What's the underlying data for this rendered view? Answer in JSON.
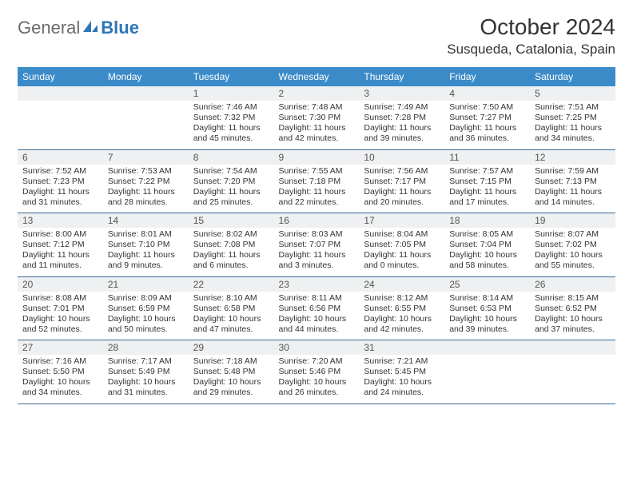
{
  "brand": {
    "general": "General",
    "blue": "Blue"
  },
  "title": "October 2024",
  "location": "Susqueda, Catalonia, Spain",
  "colors": {
    "header_bg": "#3b8bc9",
    "header_text": "#ffffff",
    "daynum_bg": "#eef0f1",
    "row_border": "#3b6a92",
    "logo_gray": "#6b6b6b",
    "logo_blue": "#2d76b8"
  },
  "fonts": {
    "title_pt": 28,
    "location_pt": 17,
    "weekday_pt": 12,
    "daynum_pt": 12,
    "body_pt": 10.5
  },
  "weekdays": [
    "Sunday",
    "Monday",
    "Tuesday",
    "Wednesday",
    "Thursday",
    "Friday",
    "Saturday"
  ],
  "weeks": [
    [
      {
        "day": "",
        "sunrise": "",
        "sunset": "",
        "daylight": ""
      },
      {
        "day": "",
        "sunrise": "",
        "sunset": "",
        "daylight": ""
      },
      {
        "day": "1",
        "sunrise": "Sunrise: 7:46 AM",
        "sunset": "Sunset: 7:32 PM",
        "daylight": "Daylight: 11 hours and 45 minutes."
      },
      {
        "day": "2",
        "sunrise": "Sunrise: 7:48 AM",
        "sunset": "Sunset: 7:30 PM",
        "daylight": "Daylight: 11 hours and 42 minutes."
      },
      {
        "day": "3",
        "sunrise": "Sunrise: 7:49 AM",
        "sunset": "Sunset: 7:28 PM",
        "daylight": "Daylight: 11 hours and 39 minutes."
      },
      {
        "day": "4",
        "sunrise": "Sunrise: 7:50 AM",
        "sunset": "Sunset: 7:27 PM",
        "daylight": "Daylight: 11 hours and 36 minutes."
      },
      {
        "day": "5",
        "sunrise": "Sunrise: 7:51 AM",
        "sunset": "Sunset: 7:25 PM",
        "daylight": "Daylight: 11 hours and 34 minutes."
      }
    ],
    [
      {
        "day": "6",
        "sunrise": "Sunrise: 7:52 AM",
        "sunset": "Sunset: 7:23 PM",
        "daylight": "Daylight: 11 hours and 31 minutes."
      },
      {
        "day": "7",
        "sunrise": "Sunrise: 7:53 AM",
        "sunset": "Sunset: 7:22 PM",
        "daylight": "Daylight: 11 hours and 28 minutes."
      },
      {
        "day": "8",
        "sunrise": "Sunrise: 7:54 AM",
        "sunset": "Sunset: 7:20 PM",
        "daylight": "Daylight: 11 hours and 25 minutes."
      },
      {
        "day": "9",
        "sunrise": "Sunrise: 7:55 AM",
        "sunset": "Sunset: 7:18 PM",
        "daylight": "Daylight: 11 hours and 22 minutes."
      },
      {
        "day": "10",
        "sunrise": "Sunrise: 7:56 AM",
        "sunset": "Sunset: 7:17 PM",
        "daylight": "Daylight: 11 hours and 20 minutes."
      },
      {
        "day": "11",
        "sunrise": "Sunrise: 7:57 AM",
        "sunset": "Sunset: 7:15 PM",
        "daylight": "Daylight: 11 hours and 17 minutes."
      },
      {
        "day": "12",
        "sunrise": "Sunrise: 7:59 AM",
        "sunset": "Sunset: 7:13 PM",
        "daylight": "Daylight: 11 hours and 14 minutes."
      }
    ],
    [
      {
        "day": "13",
        "sunrise": "Sunrise: 8:00 AM",
        "sunset": "Sunset: 7:12 PM",
        "daylight": "Daylight: 11 hours and 11 minutes."
      },
      {
        "day": "14",
        "sunrise": "Sunrise: 8:01 AM",
        "sunset": "Sunset: 7:10 PM",
        "daylight": "Daylight: 11 hours and 9 minutes."
      },
      {
        "day": "15",
        "sunrise": "Sunrise: 8:02 AM",
        "sunset": "Sunset: 7:08 PM",
        "daylight": "Daylight: 11 hours and 6 minutes."
      },
      {
        "day": "16",
        "sunrise": "Sunrise: 8:03 AM",
        "sunset": "Sunset: 7:07 PM",
        "daylight": "Daylight: 11 hours and 3 minutes."
      },
      {
        "day": "17",
        "sunrise": "Sunrise: 8:04 AM",
        "sunset": "Sunset: 7:05 PM",
        "daylight": "Daylight: 11 hours and 0 minutes."
      },
      {
        "day": "18",
        "sunrise": "Sunrise: 8:05 AM",
        "sunset": "Sunset: 7:04 PM",
        "daylight": "Daylight: 10 hours and 58 minutes."
      },
      {
        "day": "19",
        "sunrise": "Sunrise: 8:07 AM",
        "sunset": "Sunset: 7:02 PM",
        "daylight": "Daylight: 10 hours and 55 minutes."
      }
    ],
    [
      {
        "day": "20",
        "sunrise": "Sunrise: 8:08 AM",
        "sunset": "Sunset: 7:01 PM",
        "daylight": "Daylight: 10 hours and 52 minutes."
      },
      {
        "day": "21",
        "sunrise": "Sunrise: 8:09 AM",
        "sunset": "Sunset: 6:59 PM",
        "daylight": "Daylight: 10 hours and 50 minutes."
      },
      {
        "day": "22",
        "sunrise": "Sunrise: 8:10 AM",
        "sunset": "Sunset: 6:58 PM",
        "daylight": "Daylight: 10 hours and 47 minutes."
      },
      {
        "day": "23",
        "sunrise": "Sunrise: 8:11 AM",
        "sunset": "Sunset: 6:56 PM",
        "daylight": "Daylight: 10 hours and 44 minutes."
      },
      {
        "day": "24",
        "sunrise": "Sunrise: 8:12 AM",
        "sunset": "Sunset: 6:55 PM",
        "daylight": "Daylight: 10 hours and 42 minutes."
      },
      {
        "day": "25",
        "sunrise": "Sunrise: 8:14 AM",
        "sunset": "Sunset: 6:53 PM",
        "daylight": "Daylight: 10 hours and 39 minutes."
      },
      {
        "day": "26",
        "sunrise": "Sunrise: 8:15 AM",
        "sunset": "Sunset: 6:52 PM",
        "daylight": "Daylight: 10 hours and 37 minutes."
      }
    ],
    [
      {
        "day": "27",
        "sunrise": "Sunrise: 7:16 AM",
        "sunset": "Sunset: 5:50 PM",
        "daylight": "Daylight: 10 hours and 34 minutes."
      },
      {
        "day": "28",
        "sunrise": "Sunrise: 7:17 AM",
        "sunset": "Sunset: 5:49 PM",
        "daylight": "Daylight: 10 hours and 31 minutes."
      },
      {
        "day": "29",
        "sunrise": "Sunrise: 7:18 AM",
        "sunset": "Sunset: 5:48 PM",
        "daylight": "Daylight: 10 hours and 29 minutes."
      },
      {
        "day": "30",
        "sunrise": "Sunrise: 7:20 AM",
        "sunset": "Sunset: 5:46 PM",
        "daylight": "Daylight: 10 hours and 26 minutes."
      },
      {
        "day": "31",
        "sunrise": "Sunrise: 7:21 AM",
        "sunset": "Sunset: 5:45 PM",
        "daylight": "Daylight: 10 hours and 24 minutes."
      },
      {
        "day": "",
        "sunrise": "",
        "sunset": "",
        "daylight": ""
      },
      {
        "day": "",
        "sunrise": "",
        "sunset": "",
        "daylight": ""
      }
    ]
  ]
}
